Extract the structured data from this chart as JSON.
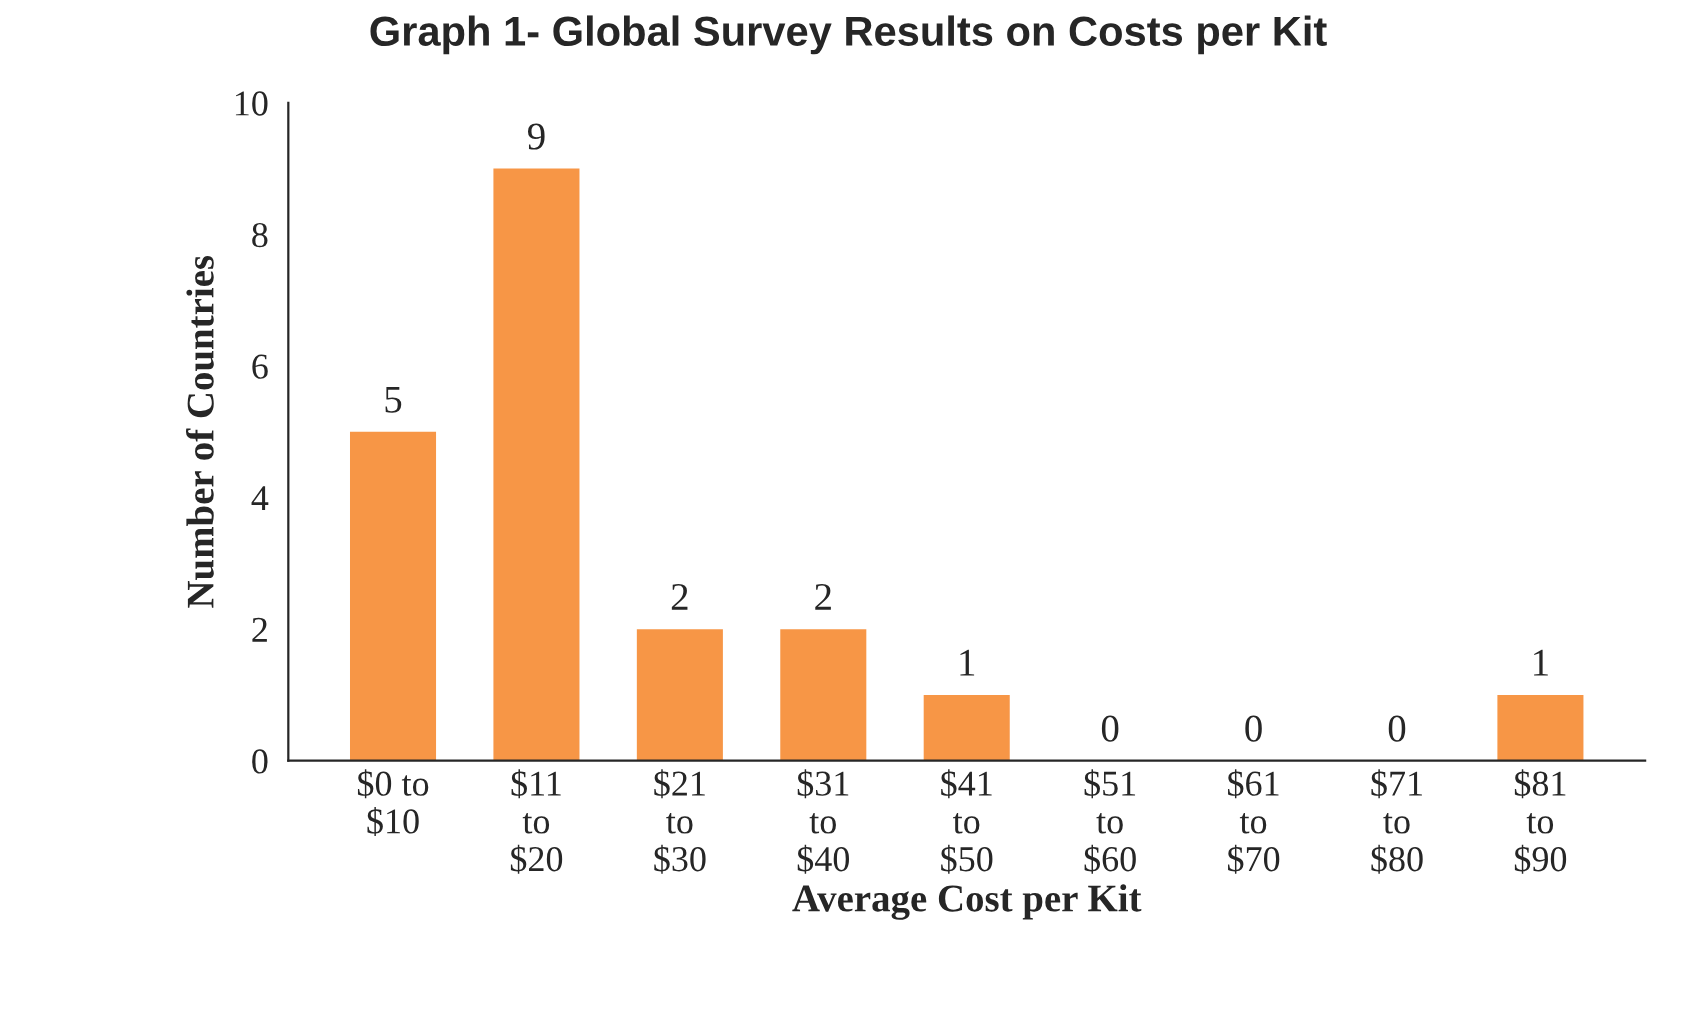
{
  "chart_data": {
    "type": "bar",
    "title": "Graph 1- Global Survey Results on Costs per Kit",
    "xlabel": "Average Cost per Kit",
    "ylabel": "Number of Countries",
    "categories": [
      "$0 to\n$10",
      "$11\nto\n$20",
      "$21\nto\n$30",
      "$31\nto\n$40",
      "$41\nto\n$50",
      "$51\nto\n$60",
      "$61\nto\n$70",
      "$71\nto\n$80",
      "$81\nto\n$90"
    ],
    "values": [
      5,
      9,
      2,
      2,
      1,
      0,
      0,
      0,
      1
    ],
    "color": "#f79646",
    "ylim": [
      0,
      10
    ],
    "yticks": [
      0,
      2,
      4,
      6,
      8,
      10
    ],
    "grid": false,
    "data_labels": true
  }
}
